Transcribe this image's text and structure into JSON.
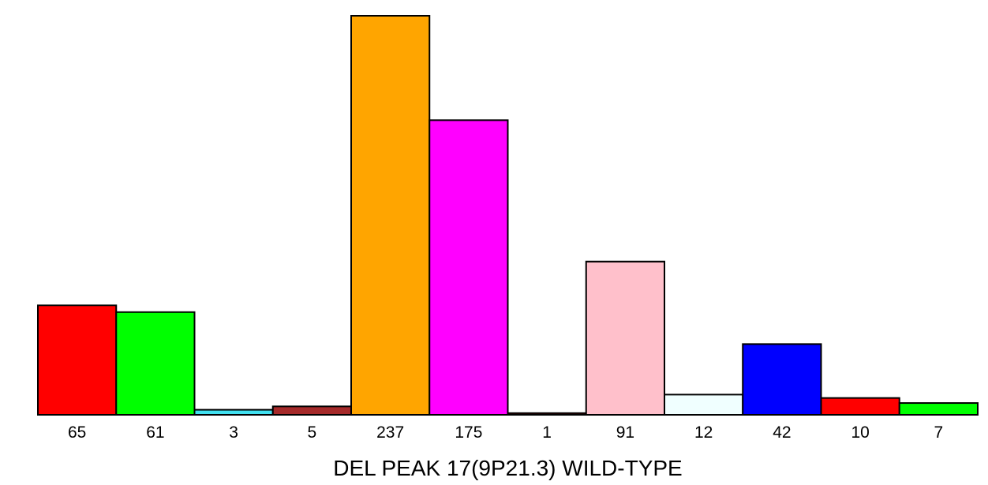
{
  "chart_data": {
    "type": "bar",
    "title": "",
    "xlabel": "DEL PEAK 17(9P21.3) WILD-TYPE",
    "ylabel": "",
    "categories": [
      "65",
      "61",
      "3",
      "5",
      "237",
      "175",
      "1",
      "91",
      "12",
      "42",
      "10",
      "7"
    ],
    "values": [
      65,
      61,
      3,
      5,
      237,
      175,
      1,
      91,
      12,
      42,
      10,
      7
    ],
    "colors": [
      "#ff0000",
      "#00ff00",
      "#40e0f0",
      "#a52a2a",
      "#ffa500",
      "#ff00ff",
      "#cc0000",
      "#ffc0cb",
      "#f0ffff",
      "#0000ff",
      "#ff0000",
      "#00ff00"
    ],
    "ylim": [
      0,
      237
    ],
    "grid": false,
    "legend": "none"
  }
}
